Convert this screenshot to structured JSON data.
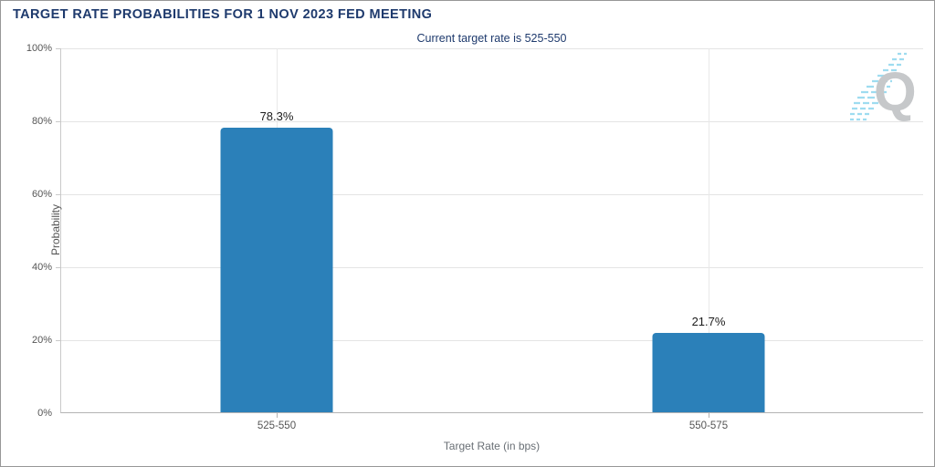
{
  "header": {
    "title": "TARGET RATE PROBABILITIES FOR 1 NOV 2023 FED MEETING",
    "subtitle": "Current target rate is 525-550"
  },
  "chart_data": {
    "type": "bar",
    "title": "TARGET RATE PROBABILITIES FOR 1 NOV 2023 FED MEETING",
    "subtitle": "Current target rate is 525-550",
    "categories": [
      "525-550",
      "550-575"
    ],
    "values": [
      78.3,
      21.7
    ],
    "value_labels": [
      "78.3%",
      "21.7%"
    ],
    "xlabel": "Target Rate (in bps)",
    "ylabel": "Probability",
    "ylim": [
      0,
      100
    ],
    "ytick_interval": 20,
    "yticks": [
      "100%",
      "80%",
      "60%",
      "40%",
      "20%",
      "0%"
    ],
    "grid": true,
    "legend": "none",
    "bar_color": "#2b80b9",
    "title_color": "#1e3a6d",
    "axis_label_color": "#555555"
  },
  "logo": {
    "letter": "Q",
    "letter_color": "#c6c8ca",
    "dash_color": "#9edcf0"
  }
}
